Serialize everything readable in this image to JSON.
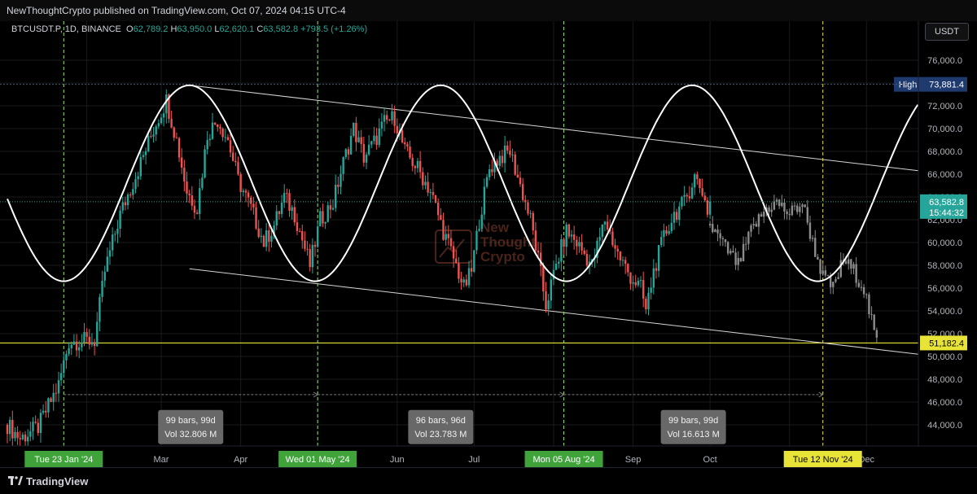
{
  "header": {
    "published": "NewThoughtCrypto published on TradingView.com, Oct 07, 2024 04:15 UTC-4"
  },
  "legend": {
    "symbol": "BTCUSDT.P, 1D, BINANCE",
    "o_label": "O",
    "o": "62,789.2",
    "h_label": "H",
    "h": "63,950.0",
    "l_label": "L",
    "l": "62,620.1",
    "c_label": "C",
    "c": "63,582.8",
    "change": "+793.5 (+1.26%)"
  },
  "currency": "USDT",
  "footer": {
    "brand": "TradingView"
  },
  "watermark": [
    "New",
    "Thought",
    "Crypto"
  ],
  "colors": {
    "up": "#26a69a",
    "down": "#ef5350",
    "projection": "#8c8c8c",
    "sine": "#ffffff",
    "channel": "#d6d6d6",
    "support": "#e8e337",
    "green_vline": "#9be36b",
    "yellow_vline": "#e8e337",
    "price_label": "#26a69a",
    "high_label": "#1e3a6e"
  },
  "chart_data": {
    "type": "candlestick",
    "ylim": [
      42500,
      78500
    ],
    "y_ticks": [
      "76,000.0",
      "74,000.0",
      "72,000.0",
      "70,000.0",
      "68,000.0",
      "66,000.0",
      "64,000.0",
      "62,000.0",
      "60,000.0",
      "58,000.0",
      "56,000.0",
      "54,000.0",
      "52,000.0",
      "50,000.0",
      "48,000.0",
      "46,000.0",
      "44,000.0"
    ],
    "x_ticks": [
      "Mar",
      "Apr",
      "Jun",
      "Jul",
      "Sep",
      "Oct",
      "Dec"
    ],
    "series": [],
    "price_labels": {
      "high": {
        "label": "High",
        "value": "73,881.4"
      },
      "last": {
        "value": "63,582.8",
        "countdown": "15:44:32"
      },
      "support": {
        "value": "51,182.4"
      }
    },
    "support_level": 51182.4,
    "date_markers": [
      {
        "label": "Tue 23 Jan '24",
        "color": "green"
      },
      {
        "label": "Wed 01 May '24",
        "color": "green"
      },
      {
        "label": "Mon 05 Aug '24",
        "color": "green"
      },
      {
        "label": "Tue 12 Nov '24",
        "color": "yellow"
      }
    ],
    "measurements": [
      {
        "bars": "99 bars, 99d",
        "vol": "Vol 32.806 M"
      },
      {
        "bars": "96 bars, 96d",
        "vol": "Vol 23.783 M"
      },
      {
        "bars": "99 bars, 99d",
        "vol": "Vol 16.613 M"
      }
    ],
    "anchor_prices": [
      {
        "d": 0,
        "p": 44000
      },
      {
        "d": 5,
        "p": 42800
      },
      {
        "d": 12,
        "p": 43800
      },
      {
        "d": 20,
        "p": 47500
      },
      {
        "d": 24,
        "p": 51300
      },
      {
        "d": 34,
        "p": 51400
      },
      {
        "d": 38,
        "p": 57500
      },
      {
        "d": 44,
        "p": 62500
      },
      {
        "d": 52,
        "p": 67000
      },
      {
        "d": 58,
        "p": 70500
      },
      {
        "d": 62,
        "p": 72500
      },
      {
        "d": 66,
        "p": 69000
      },
      {
        "d": 70,
        "p": 64500
      },
      {
        "d": 74,
        "p": 63000
      },
      {
        "d": 78,
        "p": 69500
      },
      {
        "d": 82,
        "p": 70800
      },
      {
        "d": 86,
        "p": 69000
      },
      {
        "d": 90,
        "p": 65500
      },
      {
        "d": 95,
        "p": 63000
      },
      {
        "d": 100,
        "p": 60000
      },
      {
        "d": 104,
        "p": 61500
      },
      {
        "d": 108,
        "p": 64000
      },
      {
        "d": 112,
        "p": 62500
      },
      {
        "d": 118,
        "p": 58000
      },
      {
        "d": 122,
        "p": 62000
      },
      {
        "d": 127,
        "p": 63500
      },
      {
        "d": 131,
        "p": 67000
      },
      {
        "d": 135,
        "p": 70000
      },
      {
        "d": 139,
        "p": 67500
      },
      {
        "d": 143,
        "p": 68800
      },
      {
        "d": 147,
        "p": 70500
      },
      {
        "d": 151,
        "p": 71000
      },
      {
        "d": 155,
        "p": 68000
      },
      {
        "d": 160,
        "p": 66500
      },
      {
        "d": 165,
        "p": 64500
      },
      {
        "d": 170,
        "p": 61000
      },
      {
        "d": 175,
        "p": 58000
      },
      {
        "d": 178,
        "p": 56000
      },
      {
        "d": 181,
        "p": 57500
      },
      {
        "d": 184,
        "p": 62000
      },
      {
        "d": 188,
        "p": 66500
      },
      {
        "d": 192,
        "p": 67500
      },
      {
        "d": 196,
        "p": 68000
      },
      {
        "d": 200,
        "p": 65000
      },
      {
        "d": 204,
        "p": 62000
      },
      {
        "d": 207,
        "p": 58500
      },
      {
        "d": 210,
        "p": 54500
      },
      {
        "d": 214,
        "p": 58000
      },
      {
        "d": 218,
        "p": 61000
      },
      {
        "d": 222,
        "p": 60000
      },
      {
        "d": 228,
        "p": 58000
      },
      {
        "d": 233,
        "p": 62000
      },
      {
        "d": 238,
        "p": 59000
      },
      {
        "d": 243,
        "p": 57000
      },
      {
        "d": 247,
        "p": 56000
      },
      {
        "d": 249,
        "p": 54000
      },
      {
        "d": 252,
        "p": 57500
      },
      {
        "d": 256,
        "p": 60500
      },
      {
        "d": 260,
        "p": 62500
      },
      {
        "d": 264,
        "p": 63500
      },
      {
        "d": 268,
        "p": 65800
      },
      {
        "d": 271,
        "p": 64500
      },
      {
        "d": 273,
        "p": 62800
      },
      {
        "d": 274,
        "p": 63582.8
      }
    ],
    "projection_prices": [
      {
        "d": 274,
        "p": 61500
      },
      {
        "d": 280,
        "p": 59500
      },
      {
        "d": 285,
        "p": 58000
      },
      {
        "d": 290,
        "p": 61000
      },
      {
        "d": 296,
        "p": 63000
      },
      {
        "d": 300,
        "p": 63500
      },
      {
        "d": 305,
        "p": 62500
      },
      {
        "d": 310,
        "p": 63500
      },
      {
        "d": 314,
        "p": 60000
      },
      {
        "d": 318,
        "p": 57000
      },
      {
        "d": 322,
        "p": 56000
      },
      {
        "d": 326,
        "p": 58500
      },
      {
        "d": 330,
        "p": 57500
      },
      {
        "d": 334,
        "p": 56000
      },
      {
        "d": 337,
        "p": 53000
      },
      {
        "d": 339,
        "p": 51200
      }
    ]
  }
}
